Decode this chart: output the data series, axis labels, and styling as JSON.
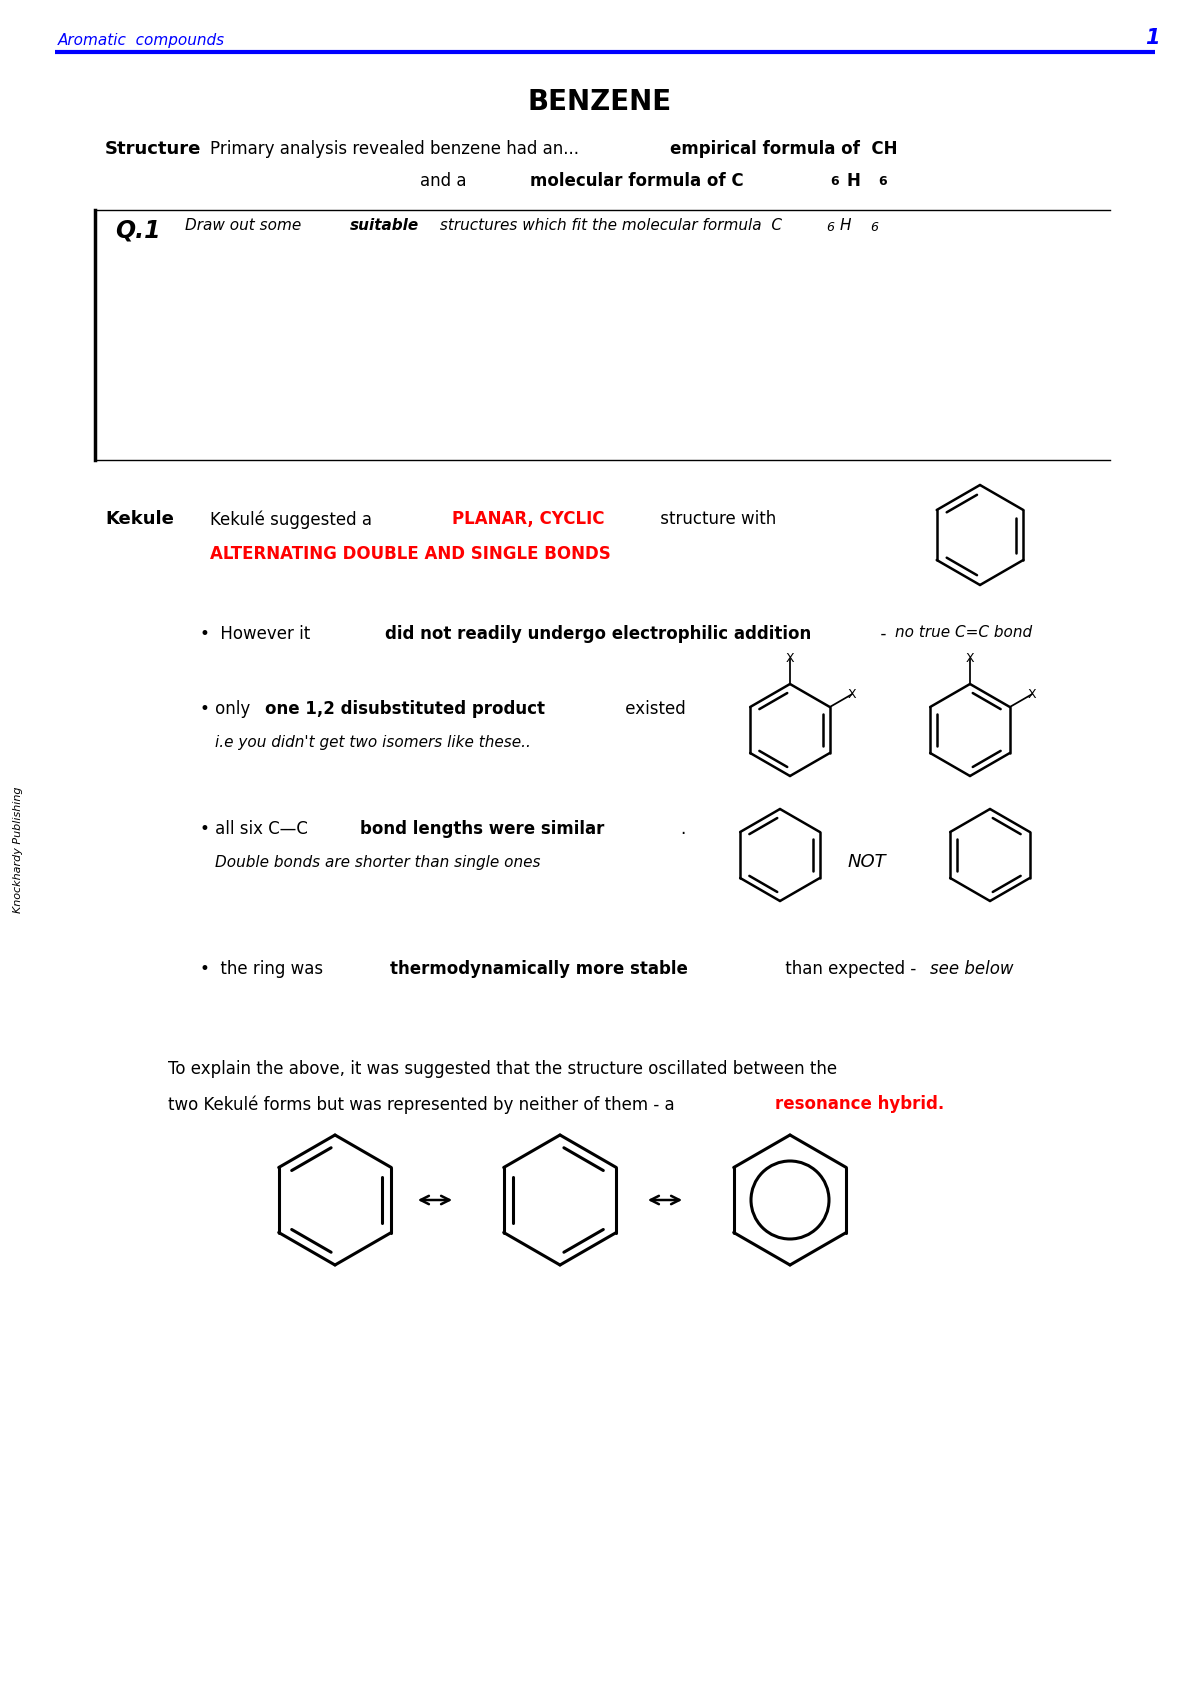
{
  "title": "BENZENE",
  "header_text": "Aromatic  compounds",
  "page_number": "1",
  "blue_color": "#0000FF",
  "red_color": "#FF0000",
  "black_color": "#000000",
  "background": "#FFFFFF"
}
